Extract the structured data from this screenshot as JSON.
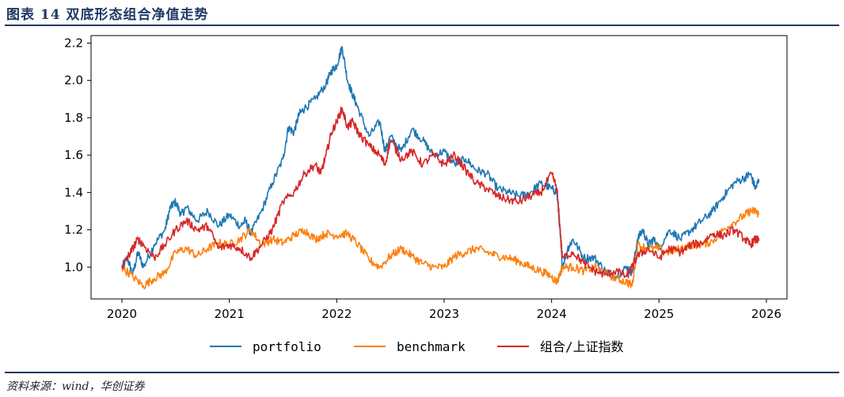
{
  "header": {
    "title": "图表 14  双底形态组合净值走势"
  },
  "footer": {
    "source": "资料来源：wind，华创证券"
  },
  "chart_data": {
    "type": "line",
    "title": "",
    "xlabel": "",
    "ylabel": "",
    "xlim": [
      2020.0,
      2026.0
    ],
    "ylim": [
      0.83,
      2.24
    ],
    "xticks": [
      "2020",
      "2021",
      "2022",
      "2023",
      "2024",
      "2025",
      "2026"
    ],
    "xtick_values": [
      2020,
      2021,
      2022,
      2023,
      2024,
      2025,
      2026
    ],
    "yticks": [
      "1.0",
      "1.2",
      "1.4",
      "1.6",
      "1.8",
      "2.0",
      "2.2"
    ],
    "ytick_values": [
      1.0,
      1.2,
      1.4,
      1.6,
      1.8,
      2.0,
      2.2
    ],
    "grid": false,
    "legend_position": "bottom-center",
    "series": [
      {
        "name": "portfolio",
        "color": "#1f77b4",
        "x": [
          2020.0,
          2020.05,
          2020.1,
          2020.15,
          2020.2,
          2020.3,
          2020.4,
          2020.45,
          2020.5,
          2020.55,
          2020.6,
          2020.7,
          2020.8,
          2020.9,
          2021.0,
          2021.1,
          2021.15,
          2021.2,
          2021.3,
          2021.4,
          2021.5,
          2021.55,
          2021.6,
          2021.65,
          2021.7,
          2021.8,
          2021.9,
          2021.95,
          2022.0,
          2022.05,
          2022.1,
          2022.15,
          2022.2,
          2022.3,
          2022.4,
          2022.45,
          2022.5,
          2022.6,
          2022.7,
          2022.8,
          2022.9,
          2023.0,
          2023.1,
          2023.2,
          2023.3,
          2023.4,
          2023.5,
          2023.6,
          2023.7,
          2023.8,
          2023.9,
          2024.0,
          2024.05,
          2024.08,
          2024.1,
          2024.15,
          2024.2,
          2024.3,
          2024.4,
          2024.5,
          2024.6,
          2024.7,
          2024.75,
          2024.8,
          2024.85,
          2024.9,
          2024.95,
          2025.0,
          2025.1,
          2025.2,
          2025.3,
          2025.4,
          2025.5,
          2025.6,
          2025.7,
          2025.8,
          2025.85,
          2025.9,
          2025.93
        ],
        "y": [
          1.0,
          1.05,
          0.96,
          1.08,
          1.0,
          1.12,
          1.2,
          1.32,
          1.35,
          1.28,
          1.32,
          1.25,
          1.3,
          1.22,
          1.28,
          1.22,
          1.25,
          1.18,
          1.3,
          1.45,
          1.58,
          1.75,
          1.72,
          1.82,
          1.85,
          1.9,
          1.98,
          2.05,
          2.08,
          2.18,
          2.0,
          1.92,
          1.85,
          1.7,
          1.78,
          1.62,
          1.7,
          1.62,
          1.74,
          1.68,
          1.6,
          1.62,
          1.55,
          1.58,
          1.52,
          1.5,
          1.42,
          1.4,
          1.38,
          1.4,
          1.45,
          1.42,
          1.4,
          1.18,
          1.0,
          1.1,
          1.15,
          1.05,
          1.05,
          0.98,
          0.95,
          1.0,
          0.97,
          1.15,
          1.2,
          1.12,
          1.15,
          1.1,
          1.2,
          1.15,
          1.2,
          1.25,
          1.3,
          1.38,
          1.45,
          1.48,
          1.5,
          1.42,
          1.47
        ]
      },
      {
        "name": "benchmark",
        "color": "#ff7f0e",
        "x": [
          2020.0,
          2020.1,
          2020.2,
          2020.3,
          2020.4,
          2020.5,
          2020.6,
          2020.7,
          2020.8,
          2020.9,
          2021.0,
          2021.1,
          2021.2,
          2021.3,
          2021.4,
          2021.5,
          2021.6,
          2021.7,
          2021.8,
          2021.9,
          2022.0,
          2022.1,
          2022.2,
          2022.3,
          2022.4,
          2022.5,
          2022.6,
          2022.7,
          2022.8,
          2022.9,
          2023.0,
          2023.1,
          2023.2,
          2023.3,
          2023.4,
          2023.5,
          2023.6,
          2023.7,
          2023.8,
          2023.9,
          2024.0,
          2024.05,
          2024.1,
          2024.2,
          2024.3,
          2024.4,
          2024.5,
          2024.6,
          2024.7,
          2024.75,
          2024.8,
          2024.9,
          2025.0,
          2025.1,
          2025.2,
          2025.3,
          2025.4,
          2025.5,
          2025.6,
          2025.7,
          2025.8,
          2025.85,
          2025.9,
          2025.93
        ],
        "y": [
          1.0,
          0.95,
          0.9,
          0.94,
          0.97,
          1.08,
          1.1,
          1.06,
          1.1,
          1.13,
          1.12,
          1.15,
          1.2,
          1.12,
          1.15,
          1.13,
          1.17,
          1.2,
          1.15,
          1.18,
          1.17,
          1.18,
          1.12,
          1.04,
          1.0,
          1.06,
          1.1,
          1.06,
          1.02,
          1.0,
          1.0,
          1.06,
          1.08,
          1.1,
          1.08,
          1.06,
          1.05,
          1.03,
          1.0,
          0.98,
          0.95,
          0.92,
          1.0,
          1.0,
          0.98,
          1.0,
          0.97,
          0.94,
          0.92,
          0.9,
          1.12,
          1.1,
          1.1,
          1.08,
          1.1,
          1.12,
          1.12,
          1.14,
          1.2,
          1.24,
          1.28,
          1.3,
          1.3,
          1.28
        ]
      },
      {
        "name": "组合/上证指数",
        "color": "#d62728",
        "x": [
          2020.0,
          2020.05,
          2020.1,
          2020.15,
          2020.2,
          2020.3,
          2020.4,
          2020.5,
          2020.6,
          2020.7,
          2020.8,
          2020.9,
          2021.0,
          2021.1,
          2021.2,
          2021.3,
          2021.4,
          2021.5,
          2021.6,
          2021.7,
          2021.8,
          2021.85,
          2021.9,
          2021.95,
          2022.0,
          2022.05,
          2022.1,
          2022.15,
          2022.2,
          2022.3,
          2022.4,
          2022.45,
          2022.5,
          2022.6,
          2022.7,
          2022.8,
          2022.9,
          2023.0,
          2023.1,
          2023.2,
          2023.3,
          2023.4,
          2023.5,
          2023.6,
          2023.7,
          2023.8,
          2023.9,
          2024.0,
          2024.05,
          2024.08,
          2024.1,
          2024.2,
          2024.3,
          2024.4,
          2024.5,
          2024.6,
          2024.7,
          2024.75,
          2024.8,
          2024.9,
          2025.0,
          2025.1,
          2025.2,
          2025.3,
          2025.4,
          2025.5,
          2025.6,
          2025.7,
          2025.8,
          2025.85,
          2025.9,
          2025.93
        ],
        "y": [
          1.0,
          1.05,
          1.1,
          1.15,
          1.12,
          1.05,
          1.12,
          1.2,
          1.25,
          1.2,
          1.22,
          1.1,
          1.12,
          1.1,
          1.05,
          1.12,
          1.2,
          1.35,
          1.4,
          1.5,
          1.55,
          1.5,
          1.6,
          1.72,
          1.78,
          1.85,
          1.75,
          1.78,
          1.72,
          1.65,
          1.6,
          1.55,
          1.68,
          1.58,
          1.62,
          1.55,
          1.6,
          1.55,
          1.6,
          1.52,
          1.45,
          1.42,
          1.38,
          1.36,
          1.35,
          1.38,
          1.4,
          1.5,
          1.42,
          1.2,
          1.05,
          1.08,
          1.02,
          0.98,
          0.96,
          0.98,
          0.95,
          1.0,
          1.06,
          1.1,
          1.05,
          1.1,
          1.08,
          1.12,
          1.13,
          1.18,
          1.17,
          1.2,
          1.15,
          1.12,
          1.15,
          1.14
        ]
      }
    ]
  }
}
